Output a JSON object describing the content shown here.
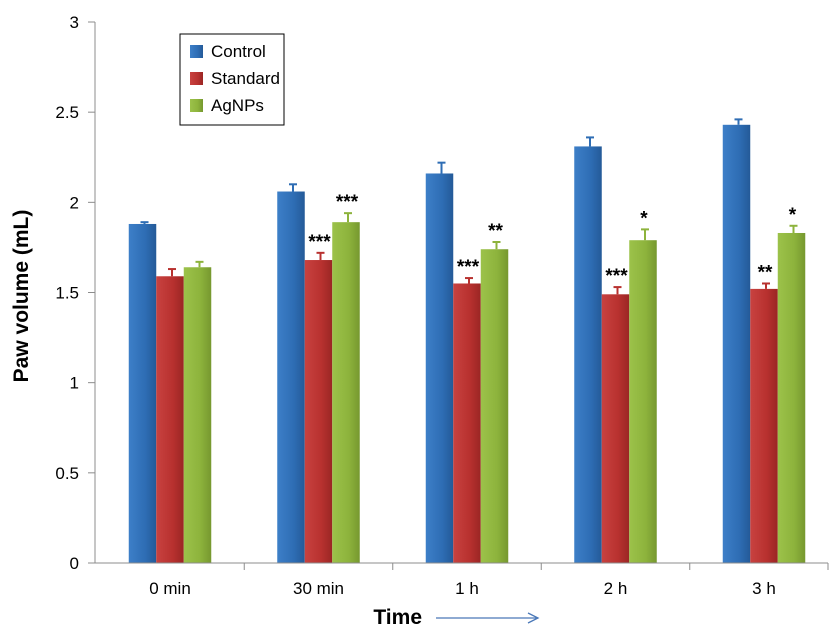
{
  "chart_data": {
    "type": "bar",
    "title": "",
    "xlabel": "Time",
    "ylabel": "Paw volume (mL)",
    "ylim": [
      0,
      3
    ],
    "yticks": [
      "0",
      "0.5",
      "1",
      "1.5",
      "2",
      "2.5",
      "3"
    ],
    "categories": [
      "0 min",
      "30 min",
      "1 h",
      "2 h",
      "3 h"
    ],
    "legend_position": "top-left",
    "grid": false,
    "series": [
      {
        "name": "Control",
        "color": "#2e6db4",
        "values": [
          1.88,
          2.06,
          2.16,
          2.31,
          2.43
        ],
        "errors": [
          0.01,
          0.04,
          0.06,
          0.05,
          0.03
        ],
        "significance": [
          "",
          "",
          "",
          "",
          ""
        ]
      },
      {
        "name": "Standard",
        "color": "#b8312f",
        "values": [
          1.59,
          1.68,
          1.55,
          1.49,
          1.52
        ],
        "errors": [
          0.04,
          0.04,
          0.03,
          0.04,
          0.03
        ],
        "significance": [
          "",
          "***",
          "***",
          "***",
          "**"
        ]
      },
      {
        "name": "AgNPs",
        "color": "#8db33c",
        "values": [
          1.64,
          1.89,
          1.74,
          1.79,
          1.83
        ],
        "errors": [
          0.03,
          0.05,
          0.04,
          0.06,
          0.04
        ],
        "significance": [
          "",
          "***",
          "**",
          "*",
          "*"
        ]
      }
    ]
  }
}
